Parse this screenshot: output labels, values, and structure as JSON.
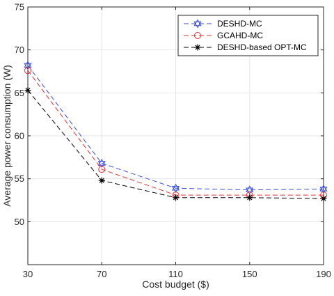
{
  "chart_data": {
    "type": "line",
    "title": "",
    "xlabel": "Cost budget ($)",
    "ylabel": "Average power consumption (W)",
    "categories": [
      30,
      70,
      110,
      150,
      190
    ],
    "xlim": [
      30,
      190
    ],
    "ylim": [
      45,
      75
    ],
    "xticks": [
      30,
      70,
      110,
      150,
      190
    ],
    "yticks": [
      50,
      55,
      60,
      65,
      70,
      75
    ],
    "grid": true,
    "legend_position": "top-right",
    "series": [
      {
        "name": "DESHD-MC",
        "values": [
          68.2,
          56.8,
          53.9,
          53.7,
          53.8
        ],
        "color": "#3a4fd8",
        "marker": "hexagram"
      },
      {
        "name": "GCAHD-MC",
        "values": [
          67.6,
          56.1,
          53.1,
          53.1,
          53.1
        ],
        "color": "#e03030",
        "marker": "circle"
      },
      {
        "name": "DESHD-based OPT-MC",
        "values": [
          65.3,
          54.8,
          52.8,
          52.8,
          52.7
        ],
        "color": "#000000",
        "marker": "asterisk"
      }
    ]
  }
}
